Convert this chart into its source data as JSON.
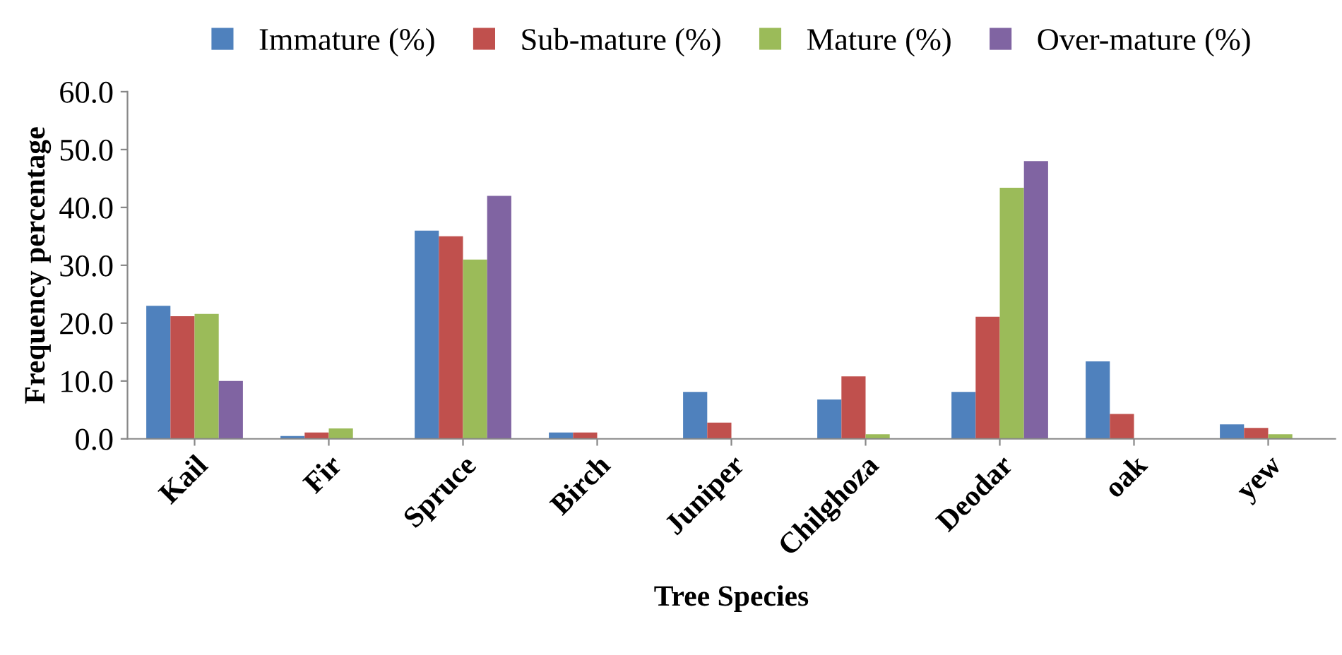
{
  "chart_data": {
    "type": "bar",
    "xlabel": "Tree Species",
    "ylabel": "Frequency percentage",
    "categories": [
      "Kail",
      "Fir",
      "Spruce",
      "Birch",
      "Juniper",
      "Chilghoza",
      "Deodar",
      "oak",
      "yew"
    ],
    "series": [
      {
        "name": "Immature (%)",
        "color": "#4f81bd",
        "values": [
          23.0,
          0.5,
          36.0,
          1.1,
          8.1,
          6.8,
          8.1,
          13.4,
          2.5
        ]
      },
      {
        "name": "Sub-mature (%)",
        "color": "#c0504d",
        "values": [
          21.2,
          1.1,
          35.0,
          1.1,
          2.8,
          10.8,
          21.1,
          4.3,
          1.9
        ]
      },
      {
        "name": "Mature (%)",
        "color": "#9bbb59",
        "values": [
          21.6,
          1.8,
          31.0,
          null,
          null,
          0.8,
          43.4,
          null,
          0.8
        ]
      },
      {
        "name": "Over-mature (%)",
        "color": "#8064a2",
        "values": [
          10.0,
          null,
          42.0,
          null,
          null,
          null,
          48.0,
          null,
          null
        ]
      }
    ],
    "ylim": [
      0,
      60
    ],
    "yticks": [
      {
        "value": 0,
        "label": "0.0"
      },
      {
        "value": 10,
        "label": "10.0"
      },
      {
        "value": 20,
        "label": "20.0"
      },
      {
        "value": 30,
        "label": "30.0"
      },
      {
        "value": 40,
        "label": "40.0"
      },
      {
        "value": 50,
        "label": "50.0"
      },
      {
        "value": 60,
        "label": "60.0"
      }
    ],
    "grid": false,
    "legend": "top"
  }
}
